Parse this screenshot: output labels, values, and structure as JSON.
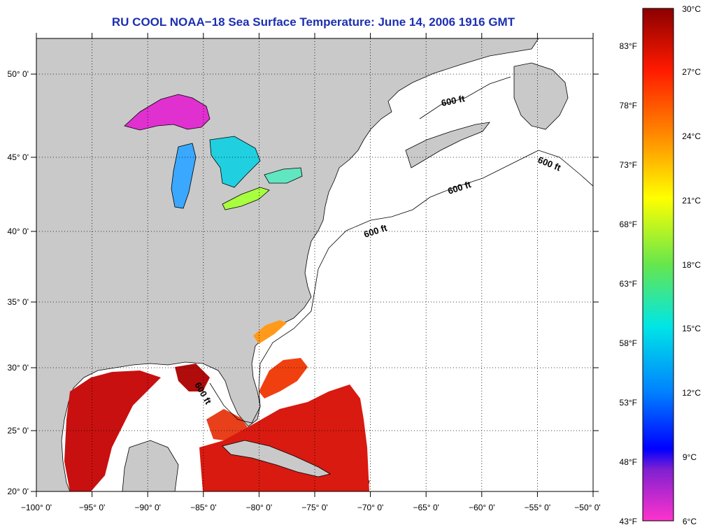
{
  "title": "RU COOL  NOAA−18  Sea Surface Temperature:  June 14, 2006 1916 GMT",
  "map": {
    "lon_range": [
      -100,
      -50
    ],
    "lat_range": [
      20,
      52.5
    ],
    "x_ticks": [
      "−100° 0'",
      "−95° 0'",
      "−90° 0'",
      "−85° 0'",
      "−80° 0'",
      "−75° 0'",
      "−70° 0'",
      "−65° 0'",
      "−60° 0'",
      "−55° 0'",
      "−50° 0'"
    ],
    "y_ticks": [
      "20° 0'",
      "25° 0'",
      "30° 0'",
      "35° 0'",
      "40° 0'",
      "45° 0'",
      "50° 0'"
    ],
    "depth_labels": [
      "600 ft",
      "600 ft",
      "600 ft",
      "600 ft",
      "600 ft"
    ],
    "land_color": "#c9c9c9",
    "ocean_color": "#ffffff"
  },
  "colorbar": {
    "celsius_labels": [
      "30°C",
      "27°C",
      "24°C",
      "21°C",
      "18°C",
      "15°C",
      "12°C",
      "9°C",
      "6°C"
    ],
    "fahrenheit_labels": [
      "83°F",
      "78°F",
      "73°F",
      "68°F",
      "63°F",
      "58°F",
      "53°F",
      "48°F",
      "43°F"
    ],
    "gradient_colors": [
      "#8b0000",
      "#ff1a00",
      "#ff8c00",
      "#ffff00",
      "#66e64d",
      "#00e6e6",
      "#0080ff",
      "#0000ff",
      "#8020d0",
      "#ff33cc"
    ]
  }
}
